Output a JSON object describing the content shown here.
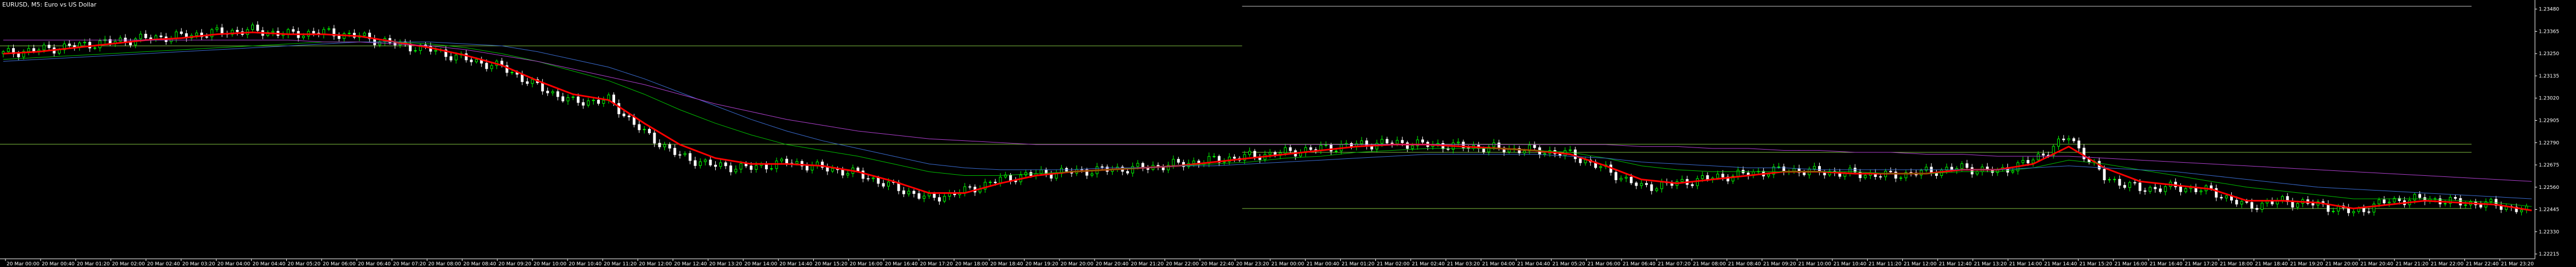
{
  "window": {
    "title": "EURUSD, M5: Euro vs US Dollar",
    "colors": {
      "background": "#000000",
      "foreground": "#ffffff",
      "bull_candle": "#00ff00",
      "bear_candle": "#ffffff",
      "ma_fast": "#ff0000",
      "ma_mid": "#00c000",
      "ma_blue": "#3a6cd0",
      "ma_slow": "#b040d0",
      "level_line": "#7fbf3f",
      "level_line_top": "#c0c0c0"
    }
  },
  "chart_data": {
    "type": "line",
    "title": "EURUSD, M5: Euro vs US Dollar",
    "price_axis_labels": [
      "1.23480",
      "1.23365",
      "1.23250",
      "1.23135",
      "1.23020",
      "1.22905",
      "1.22790",
      "1.22675",
      "1.22560",
      "1.22445",
      "1.22330",
      "1.22215"
    ],
    "ylim": [
      1.2219,
      1.2351
    ],
    "time_labels": [
      "20 Mar 00:00",
      "20 Mar 00:40",
      "20 Mar 01:20",
      "20 Mar 02:00",
      "20 Mar 02:40",
      "20 Mar 03:20",
      "20 Mar 04:00",
      "20 Mar 04:40",
      "20 Mar 05:20",
      "20 Mar 06:00",
      "20 Mar 06:40",
      "20 Mar 07:20",
      "20 Mar 08:00",
      "20 Mar 08:40",
      "20 Mar 09:20",
      "20 Mar 10:00",
      "20 Mar 10:40",
      "20 Mar 11:20",
      "20 Mar 12:00",
      "20 Mar 12:40",
      "20 Mar 13:20",
      "20 Mar 14:00",
      "20 Mar 14:40",
      "20 Mar 15:20",
      "20 Mar 16:00",
      "20 Mar 16:40",
      "20 Mar 17:20",
      "20 Mar 18:00",
      "20 Mar 18:40",
      "20 Mar 19:20",
      "20 Mar 20:00",
      "20 Mar 20:40",
      "20 Mar 21:20",
      "20 Mar 22:00",
      "20 Mar 22:40",
      "20 Mar 23:20",
      "21 Mar 00:00",
      "21 Mar 00:40",
      "21 Mar 01:20",
      "21 Mar 02:00",
      "21 Mar 02:40",
      "21 Mar 03:20",
      "21 Mar 04:00",
      "21 Mar 04:40",
      "21 Mar 05:20",
      "21 Mar 06:00",
      "21 Mar 06:40",
      "21 Mar 07:20",
      "21 Mar 08:00",
      "21 Mar 08:40",
      "21 Mar 09:20",
      "21 Mar 10:00",
      "21 Mar 10:40",
      "21 Mar 11:20",
      "21 Mar 12:00",
      "21 Mar 12:40",
      "21 Mar 13:20",
      "21 Mar 14:00",
      "21 Mar 14:40",
      "21 Mar 15:20",
      "21 Mar 16:00",
      "21 Mar 16:40",
      "21 Mar 17:20",
      "21 Mar 18:00",
      "21 Mar 18:40",
      "21 Mar 19:20",
      "21 Mar 20:00",
      "21 Mar 20:40",
      "21 Mar 21:20",
      "21 Mar 22:00",
      "21 Mar 22:40",
      "21 Mar 23:20"
    ],
    "close": [
      1.2325,
      1.2327,
      1.2329,
      1.2331,
      1.2333,
      1.2334,
      1.2336,
      1.2337,
      1.2335,
      1.2336,
      1.2334,
      1.233,
      1.2327,
      1.2322,
      1.2318,
      1.2308,
      1.23,
      1.2301,
      1.2284,
      1.2272,
      1.2267,
      1.2266,
      1.2269,
      1.2266,
      1.2263,
      1.2256,
      1.225,
      1.2254,
      1.226,
      1.2263,
      1.2264,
      1.2265,
      1.2266,
      1.2268,
      1.227,
      1.2272,
      1.2274,
      1.2276,
      1.2278,
      1.2279,
      1.2278,
      1.2277,
      1.2276,
      1.2275,
      1.2273,
      1.2265,
      1.2256,
      1.2258,
      1.2261,
      1.2263,
      1.2265,
      1.2264,
      1.2263,
      1.2262,
      1.2264,
      1.2266,
      1.2264,
      1.227,
      1.2282,
      1.2261,
      1.2255,
      1.2256,
      1.2254,
      1.2246,
      1.2249,
      1.2247,
      1.2243,
      1.2249,
      1.225,
      1.2248,
      1.2247,
      1.2243
    ],
    "indicators": [
      {
        "values": [
          1.2325,
          1.2326,
          1.2328,
          1.233,
          1.2332,
          1.2333,
          1.2335,
          1.2336,
          1.2335,
          1.2335,
          1.2334,
          1.2331,
          1.2328,
          1.2324,
          1.2319,
          1.2311,
          1.2304,
          1.2301,
          1.2289,
          1.2278,
          1.2271,
          1.2268,
          1.2268,
          1.2267,
          1.2264,
          1.2259,
          1.2253,
          1.2253,
          1.2258,
          1.2262,
          1.2264,
          1.2265,
          1.2266,
          1.2267,
          1.2269,
          1.2271,
          1.2273,
          1.2275,
          1.2277,
          1.2278,
          1.2278,
          1.2277,
          1.2276,
          1.2275,
          1.2273,
          1.2267,
          1.226,
          1.2258,
          1.226,
          1.2262,
          1.2264,
          1.2264,
          1.2263,
          1.2263,
          1.2263,
          1.2265,
          1.2265,
          1.2268,
          1.2277,
          1.2266,
          1.2259,
          1.2257,
          1.2255,
          1.2249,
          1.2249,
          1.2248,
          1.2245,
          1.2247,
          1.2249,
          1.2248,
          1.2247,
          1.2244
        ]
      },
      {
        "values": [
          1.2322,
          1.2323,
          1.2324,
          1.2325,
          1.2326,
          1.2327,
          1.2328,
          1.2329,
          1.233,
          1.2331,
          1.2331,
          1.2331,
          1.233,
          1.2328,
          1.2325,
          1.2321,
          1.2316,
          1.2311,
          1.2304,
          1.2296,
          1.2289,
          1.2283,
          1.2278,
          1.2275,
          1.2272,
          1.2268,
          1.2264,
          1.2262,
          1.2262,
          1.2263,
          1.2264,
          1.2265,
          1.2266,
          1.2267,
          1.2268,
          1.2269,
          1.2271,
          1.2272,
          1.2274,
          1.2275,
          1.2276,
          1.2276,
          1.2276,
          1.2275,
          1.2274,
          1.2271,
          1.2267,
          1.2265,
          1.2264,
          1.2264,
          1.2264,
          1.2264,
          1.2264,
          1.2263,
          1.2263,
          1.2264,
          1.2264,
          1.2266,
          1.227,
          1.2268,
          1.2265,
          1.2262,
          1.2259,
          1.2256,
          1.2254,
          1.2252,
          1.225,
          1.225,
          1.225,
          1.2249,
          1.2248,
          1.2246
        ]
      },
      {
        "values": [
          1.2321,
          1.2322,
          1.2323,
          1.2324,
          1.2325,
          1.2326,
          1.2327,
          1.2328,
          1.2329,
          1.233,
          1.2331,
          1.2331,
          1.2331,
          1.233,
          1.2329,
          1.2326,
          1.2322,
          1.2318,
          1.2312,
          1.2305,
          1.2298,
          1.2291,
          1.2285,
          1.228,
          1.2276,
          1.2272,
          1.2268,
          1.2266,
          1.2265,
          1.2265,
          1.2265,
          1.2266,
          1.2266,
          1.2267,
          1.2267,
          1.2268,
          1.2269,
          1.227,
          1.2271,
          1.2272,
          1.2273,
          1.2273,
          1.2273,
          1.2273,
          1.2272,
          1.2271,
          1.2269,
          1.2268,
          1.2267,
          1.2266,
          1.2266,
          1.2265,
          1.2265,
          1.2265,
          1.2265,
          1.2265,
          1.2265,
          1.2266,
          1.2267,
          1.2266,
          1.2265,
          1.2264,
          1.2262,
          1.226,
          1.2258,
          1.2256,
          1.2255,
          1.2254,
          1.2253,
          1.2252,
          1.2251,
          1.225
        ]
      },
      {
        "values": [
          1.2332,
          1.2332,
          1.2332,
          1.2332,
          1.2332,
          1.2332,
          1.2332,
          1.2332,
          1.2332,
          1.2331,
          1.2331,
          1.233,
          1.2329,
          1.2327,
          1.2324,
          1.2321,
          1.2317,
          1.2313,
          1.2309,
          1.2304,
          1.2299,
          1.2295,
          1.2291,
          1.2288,
          1.2285,
          1.2283,
          1.2281,
          1.228,
          1.2279,
          1.2278,
          1.2278,
          1.2278,
          1.2278,
          1.2278,
          1.2278,
          1.2278,
          1.2278,
          1.2278,
          1.2278,
          1.2278,
          1.2278,
          1.2278,
          1.2278,
          1.2278,
          1.2278,
          1.2278,
          1.2277,
          1.2277,
          1.2276,
          1.2276,
          1.2275,
          1.2275,
          1.2274,
          1.2274,
          1.2273,
          1.2273,
          1.2272,
          1.2272,
          1.2272,
          1.2271,
          1.227,
          1.2269,
          1.2268,
          1.2267,
          1.2266,
          1.2265,
          1.2264,
          1.2263,
          1.2262,
          1.2261,
          1.226,
          1.2259
        ]
      }
    ],
    "horizontal_levels": [
      {
        "price": 1.2329,
        "from_fraction": 0.0,
        "to_fraction": 0.49,
        "color": "#7fbf3f"
      },
      {
        "price": 1.23495,
        "from_fraction": 0.49,
        "to_fraction": 0.975,
        "color": "#c0c0c0"
      },
      {
        "price": 1.22782,
        "from_fraction": 0.0,
        "to_fraction": 0.975,
        "color": "#7fbf3f"
      },
      {
        "price": 1.2274,
        "from_fraction": 0.49,
        "to_fraction": 0.975,
        "color": "#7fbf3f"
      },
      {
        "price": 1.2245,
        "from_fraction": 0.49,
        "to_fraction": 0.975,
        "color": "#7fbf3f"
      }
    ],
    "grid": false
  }
}
